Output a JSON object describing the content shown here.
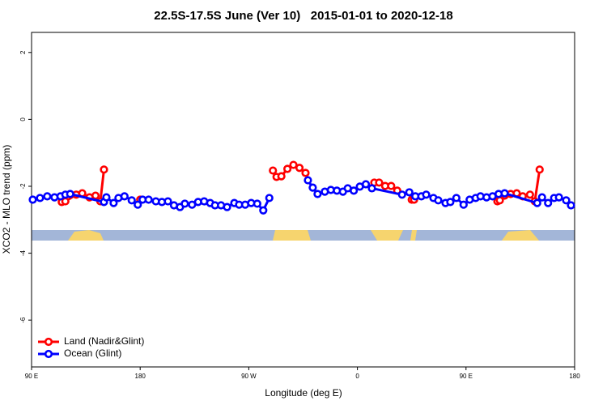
{
  "chart_data": {
    "type": "line",
    "title": "22.5S-17.5S June (Ver 10)   2015-01-01 to 2020-12-18",
    "x_label": "Longitude (deg E)",
    "y_label": "XCO2 - MLO trend (ppm)",
    "xlim": [
      90,
      540
    ],
    "xticks": [
      {
        "value": 90,
        "label": "90 E"
      },
      {
        "value": 180,
        "label": "180"
      },
      {
        "value": 270,
        "label": "90 W"
      },
      {
        "value": 360,
        "label": "0"
      },
      {
        "value": 450,
        "label": "90 E"
      },
      {
        "value": 540,
        "label": "180"
      }
    ],
    "ylim": [
      -7.4,
      2.6
    ],
    "yticks": [
      -6,
      -4,
      -2,
      0,
      2
    ],
    "legend": "bottom-left",
    "series": [
      {
        "name": "Land (Nadir&Glint)",
        "color": "#ff0000",
        "x": [
          115,
          118,
          127,
          132,
          138,
          143,
          147,
          150,
          155,
          180,
          185,
          290,
          293,
          297,
          302,
          307,
          312,
          317,
          350,
          374,
          378,
          383,
          388,
          393,
          400,
          405,
          407,
          440,
          476,
          478,
          482,
          487,
          492,
          497,
          503,
          507,
          511
        ],
        "values": [
          -2.47,
          -2.45,
          -2.25,
          -2.21,
          -2.33,
          -2.28,
          -2.45,
          -1.5,
          null,
          -2.4,
          null,
          -1.53,
          -1.72,
          -1.7,
          -1.48,
          -1.36,
          -1.45,
          -1.6,
          null,
          -1.89,
          -1.89,
          -1.99,
          -1.99,
          -2.13,
          null,
          -2.4,
          -2.4,
          null,
          -2.45,
          -2.42,
          -2.28,
          -2.23,
          -2.21,
          -2.3,
          -2.25,
          -2.45,
          -1.5
        ]
      },
      {
        "name": "Ocean (Glint)",
        "color": "#0000ff",
        "x": [
          91,
          97,
          103,
          109,
          114,
          118,
          122,
          150,
          152,
          158,
          162,
          167,
          173,
          178,
          182,
          187,
          193,
          198,
          203,
          208,
          213,
          217,
          223,
          228,
          233,
          238,
          242,
          247,
          252,
          258,
          262,
          267,
          272,
          277,
          282,
          287,
          300,
          319,
          323,
          327,
          333,
          338,
          343,
          348,
          352,
          357,
          362,
          367,
          372,
          397,
          403,
          408,
          413,
          417,
          423,
          427,
          433,
          437,
          442,
          448,
          453,
          458,
          462,
          467,
          472,
          477,
          482,
          509,
          513,
          518,
          523,
          527,
          533,
          537
        ],
        "values": [
          -2.4,
          -2.35,
          -2.3,
          -2.33,
          -2.3,
          -2.25,
          -2.23,
          -2.47,
          -2.33,
          -2.5,
          -2.35,
          -2.3,
          -2.42,
          -2.55,
          -2.4,
          -2.4,
          -2.45,
          -2.47,
          -2.45,
          -2.57,
          -2.62,
          -2.52,
          -2.55,
          -2.47,
          -2.45,
          -2.5,
          -2.57,
          -2.57,
          -2.62,
          -2.5,
          -2.55,
          -2.55,
          -2.5,
          -2.52,
          -2.72,
          -2.35,
          null,
          -1.82,
          -2.04,
          -2.23,
          -2.16,
          -2.11,
          -2.13,
          -2.16,
          -2.06,
          -2.13,
          -2.01,
          -1.94,
          -2.06,
          -2.25,
          -2.18,
          -2.3,
          -2.3,
          -2.25,
          -2.35,
          -2.42,
          -2.5,
          -2.47,
          -2.35,
          -2.55,
          -2.4,
          -2.35,
          -2.3,
          -2.33,
          -2.3,
          -2.23,
          -2.21,
          -2.5,
          -2.33,
          -2.5,
          -2.35,
          -2.33,
          -2.42,
          -2.57
        ]
      }
    ]
  }
}
